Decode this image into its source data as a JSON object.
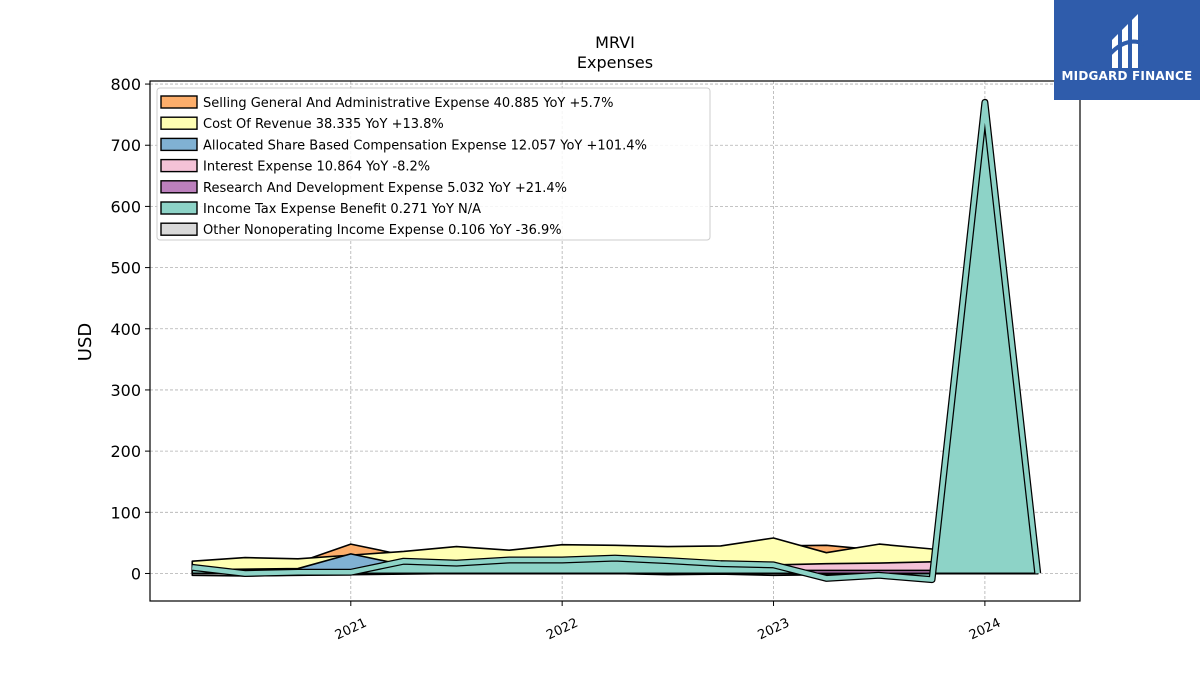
{
  "chart_data": {
    "type": "area",
    "title": "MRVI",
    "subtitle": "Expenses",
    "ylabel": "USD",
    "xlabel": "",
    "ylim": [
      -45,
      805
    ],
    "xlim": [
      2020.05,
      2024.45
    ],
    "yticks": [
      0,
      100,
      200,
      300,
      400,
      500,
      600,
      700,
      800
    ],
    "xticks": [
      2021,
      2022,
      2023,
      2024
    ],
    "xtick_labels": [
      "2021",
      "2022",
      "2023",
      "2024"
    ],
    "grid": true,
    "legend_position": "top-left",
    "x": [
      2020.25,
      2020.5,
      2020.75,
      2021.0,
      2021.25,
      2021.5,
      2021.75,
      2022.0,
      2022.25,
      2022.5,
      2022.75,
      2023.0,
      2023.25,
      2023.5,
      2023.75,
      2024.0,
      2024.25
    ],
    "series": [
      {
        "name": "Selling General And Administrative Expense",
        "legend": "Selling General And Administrative Expense  40.885 YoY +5.7%",
        "color": "#fdae6b",
        "values": [
          18,
          16,
          18,
          48,
          30,
          28,
          30,
          34,
          34,
          32,
          30,
          45,
          46,
          38,
          34,
          42,
          41
        ]
      },
      {
        "name": "Cost Of Revenue",
        "legend": "Cost Of Revenue  38.335 YoY +13.8%",
        "color": "#ffffb3",
        "values": [
          20,
          26,
          24,
          30,
          36,
          44,
          38,
          47,
          46,
          44,
          45,
          58,
          34,
          48,
          40,
          34,
          38
        ]
      },
      {
        "name": "Allocated Share Based Compensation Expense",
        "legend": "Allocated Share Based Compensation Expense  12.057 YoY +101.4%",
        "color": "#80b1d3",
        "values": [
          6,
          7,
          8,
          32,
          14,
          12,
          10,
          10,
          9,
          8,
          7,
          8,
          6,
          5,
          6,
          8,
          12
        ]
      },
      {
        "name": "Interest Expense",
        "legend": "Interest Expense  10.864 YoY -8.2%",
        "color": "#f4c2d7",
        "values": [
          5,
          5,
          6,
          6,
          7,
          8,
          9,
          10,
          12,
          12,
          12,
          14,
          16,
          17,
          19,
          22,
          11
        ]
      },
      {
        "name": "Research And Development Expense",
        "legend": "Research And Development Expense  5.032 YoY +21.4%",
        "color": "#bc80bd",
        "values": [
          3,
          4,
          4,
          5,
          5,
          5,
          5,
          5,
          5,
          5,
          5,
          5,
          5,
          5,
          5,
          5,
          5
        ]
      },
      {
        "name": "Income Tax Expense Benefit",
        "legend": "Income Tax Expense Benefit  0.271 YoY N/A",
        "color": "#8dd3c7",
        "values": [
          10,
          0,
          2,
          2,
          20,
          17,
          22,
          22,
          25,
          21,
          16,
          14,
          -8,
          -3,
          -10,
          770,
          0.271
        ]
      },
      {
        "name": "Other Nonoperating Income Expense",
        "legend": "Other Nonoperating Income Expense  0.106 YoY -36.9%",
        "color": "#d9d9d9",
        "values": [
          -3,
          -4,
          -3,
          -2,
          -1,
          0,
          0,
          0,
          0,
          -2,
          -1,
          -3,
          -2,
          -1,
          0,
          0,
          0.106
        ]
      }
    ]
  },
  "branding": {
    "logo_text": "MIDGARD FINANCE",
    "logo_color": "#2f5cab"
  }
}
